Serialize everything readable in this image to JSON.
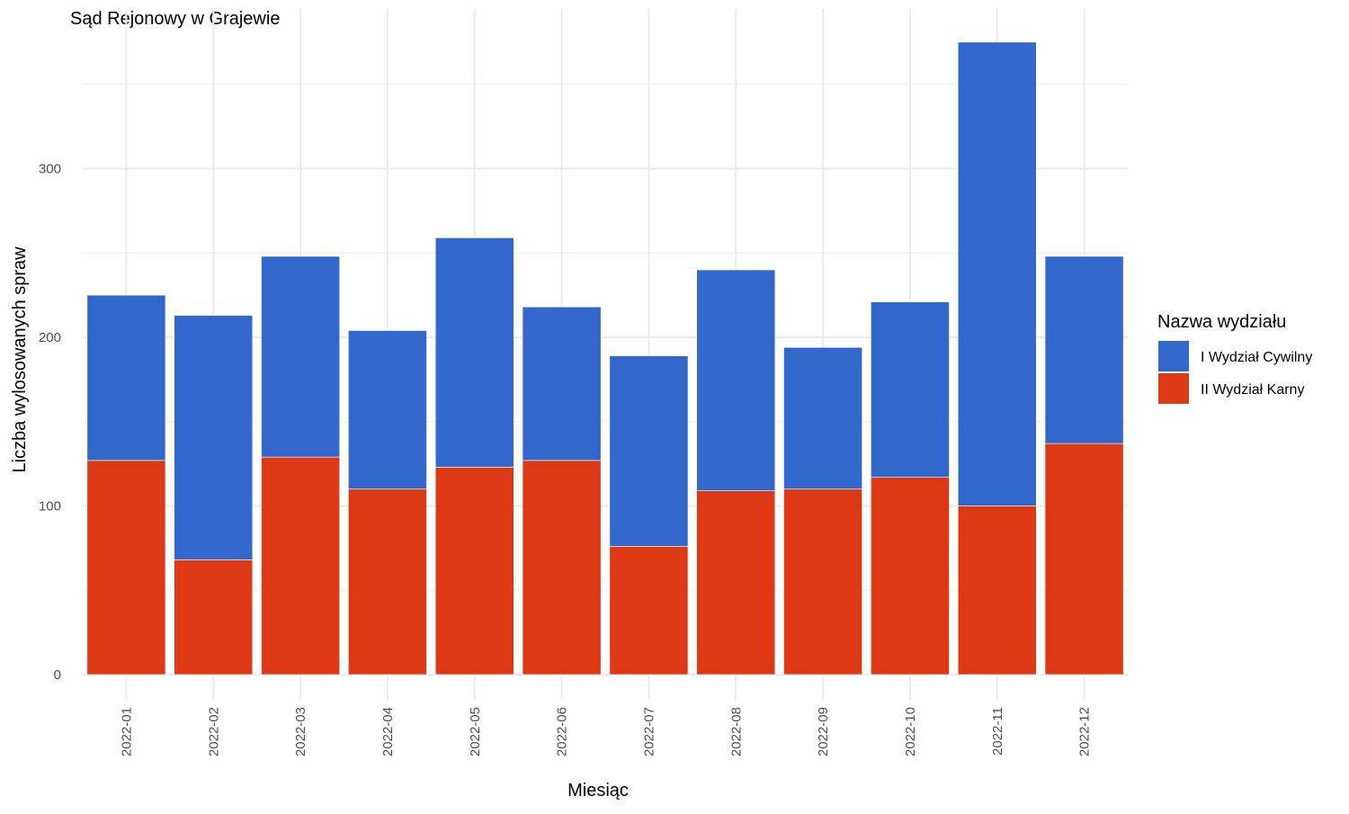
{
  "chart_data": {
    "type": "bar",
    "stacked": true,
    "title": "Sąd Rejonowy w Grajewie",
    "xlabel": "Miesiąc",
    "ylabel": "Liczba wylosowanych spraw",
    "categories": [
      "2022-01",
      "2022-02",
      "2022-03",
      "2022-04",
      "2022-05",
      "2022-06",
      "2022-07",
      "2022-08",
      "2022-09",
      "2022-10",
      "2022-11",
      "2022-12"
    ],
    "series": [
      {
        "name": "II Wydział Karny",
        "color": "#DD3914",
        "values": [
          127,
          68,
          129,
          110,
          123,
          127,
          76,
          109,
          110,
          117,
          100,
          137
        ]
      },
      {
        "name": "I Wydział Cywilny",
        "color": "#3267CC",
        "values": [
          98,
          145,
          119,
          94,
          136,
          91,
          113,
          131,
          84,
          104,
          275,
          111
        ]
      }
    ],
    "ylim": [
      0,
      375
    ],
    "yticks": [
      0,
      100,
      200,
      300
    ],
    "grid": true,
    "legend": {
      "title": "Nazwa wydziału",
      "position": "right",
      "entries": [
        "I Wydział Cywilny",
        "II Wydział Karny"
      ]
    }
  }
}
